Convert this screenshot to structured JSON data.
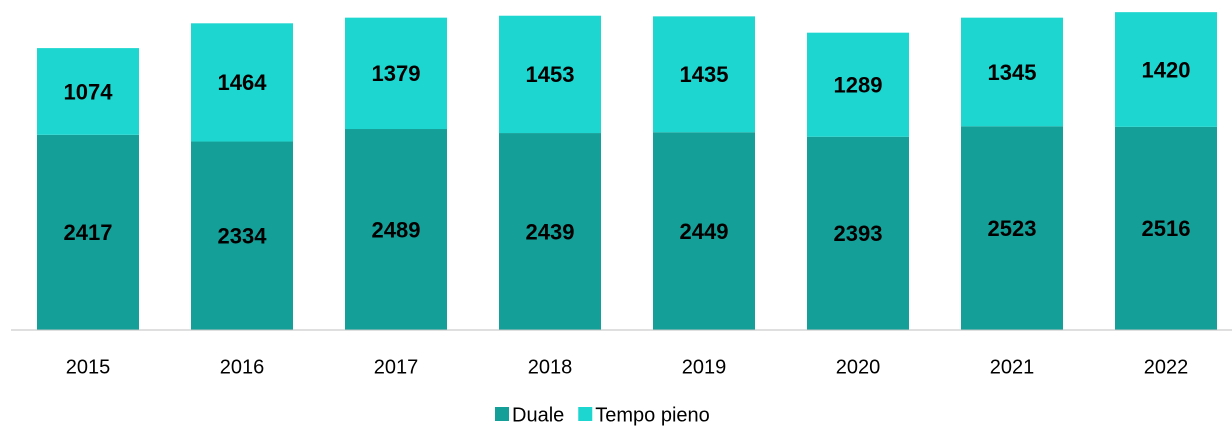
{
  "chart_data": {
    "type": "stacked_bar",
    "categories": [
      "2015",
      "2016",
      "2017",
      "2018",
      "2019",
      "2020",
      "2021",
      "2022"
    ],
    "series": [
      {
        "name": "Duale",
        "color": "#14a098",
        "values": [
          2417,
          2334,
          2489,
          2439,
          2449,
          2393,
          2523,
          2516
        ]
      },
      {
        "name": "Tempo pieno",
        "color": "#1dd6cf",
        "values": [
          1074,
          1464,
          1379,
          1453,
          1435,
          1289,
          1345,
          1420
        ]
      }
    ],
    "ylim": [
      0,
      4000
    ]
  }
}
